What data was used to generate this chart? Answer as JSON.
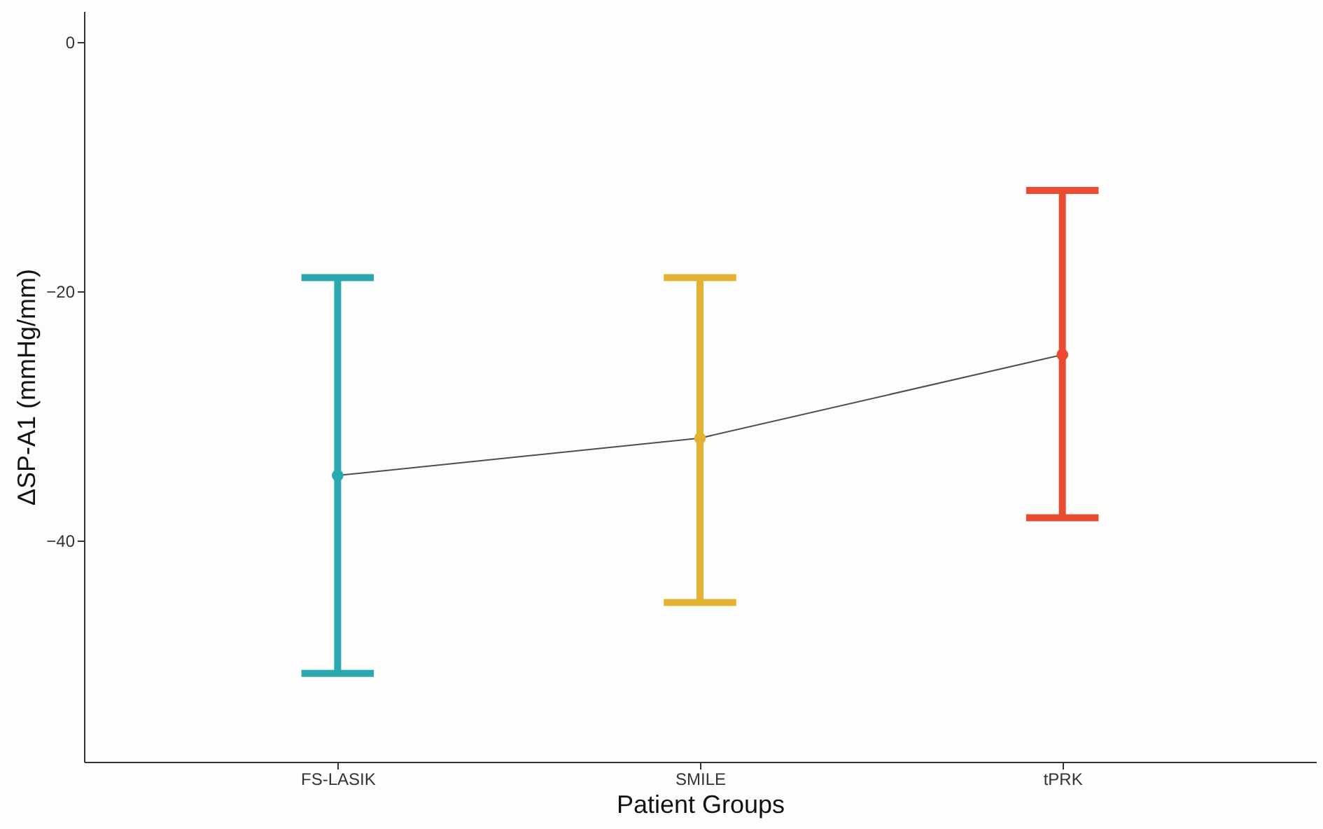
{
  "chart_data": {
    "type": "line",
    "xlabel": "Patient Groups",
    "ylabel": "ΔSP-A1 (mmHg/mm)",
    "categories": [
      "FS-LASIK",
      "SMILE",
      "tPRK"
    ],
    "series": [
      {
        "color": "#4d4d4d",
        "colors": [
          "#2aa8b0",
          "#e3b232",
          "#e94b33"
        ],
        "values": [
          -34.8,
          -31.8,
          -25.1
        ],
        "errors": [
          [
            -50.7,
            -18.9
          ],
          [
            -45.0,
            -18.9
          ],
          [
            -38.2,
            -11.9
          ]
        ]
      }
    ],
    "ylim": [
      -57.8,
      2.5
    ],
    "yticks": [
      0,
      -20,
      -40
    ],
    "grid": false,
    "marker": "circle",
    "line_style": "solid"
  }
}
